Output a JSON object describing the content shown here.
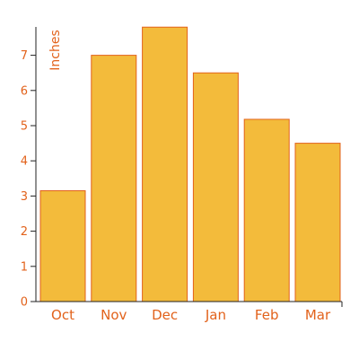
{
  "chart_data": {
    "type": "bar",
    "categories": [
      "Oct",
      "Nov",
      "Dec",
      "Jan",
      "Feb",
      "Mar"
    ],
    "values": [
      3.15,
      7.0,
      7.8,
      6.5,
      5.18,
      4.5
    ],
    "ylabel": "Inches",
    "yticks": [
      "0",
      "1",
      "2",
      "3",
      "4",
      "5",
      "6",
      "7"
    ],
    "ylim": [
      0,
      7.8
    ],
    "grid": false,
    "colors": {
      "bar_fill": "#f3bb3b",
      "bar_stroke": "#e2621b",
      "text": "#e2621b",
      "axis": "#222222"
    }
  }
}
